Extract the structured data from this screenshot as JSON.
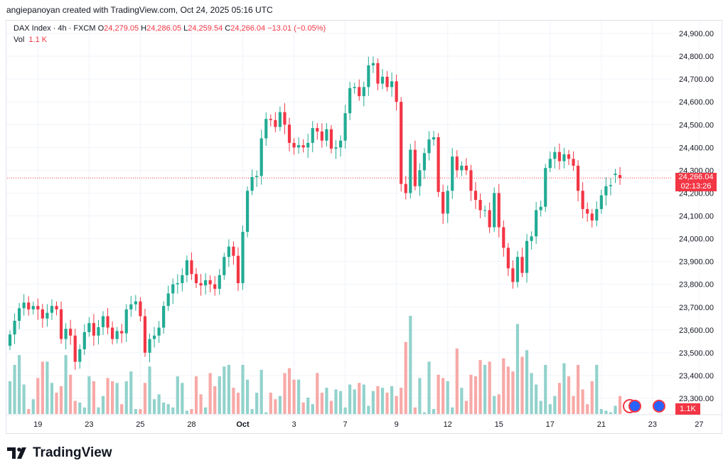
{
  "header": {
    "credit": "angiepanoyan created with TradingView.com, Oct 24, 2025 05:16 UTC"
  },
  "legend": {
    "symbol": "DAX Index · 4h · FXCM",
    "o_label": "O",
    "o_value": "24,279.05",
    "h_label": "H",
    "h_value": "24,286.05",
    "l_label": "L",
    "l_value": "24,259.54",
    "c_label": "C",
    "c_value": "24,266.04 −13.01 (−0.05%)",
    "vol_label": "Vol",
    "vol_value": "1.1 K"
  },
  "price_tag": {
    "price": "24,266.04",
    "countdown": "02:13:26"
  },
  "volume_tag": "1.1K",
  "logo": {
    "text": "TradingView"
  },
  "colors": {
    "up": "#22ab94",
    "down": "#f23645",
    "up_vol": "#92d2cc",
    "down_vol": "#f7a9a7",
    "grid": "#f0f3fa"
  },
  "chart_data": {
    "type": "candlestick",
    "title": "DAX Index · 4h · FXCM",
    "ylim": [
      23250,
      24980
    ],
    "y_ticks": [
      "24,900.00",
      "24,800.00",
      "24,700.00",
      "24,600.00",
      "24,500.00",
      "24,400.00",
      "24,300.00",
      "24,200.00",
      "24,100.00",
      "24,000.00",
      "23,900.00",
      "23,800.00",
      "23,700.00",
      "23,600.00",
      "23,500.00",
      "23,400.00",
      "23,300.00"
    ],
    "y_tick_values": [
      24900,
      24800,
      24700,
      24600,
      24500,
      24400,
      24300,
      24200,
      24100,
      24000,
      23900,
      23800,
      23700,
      23600,
      23500,
      23400,
      23300
    ],
    "x_ticks": [
      {
        "label": "19",
        "bar": 6
      },
      {
        "label": "23",
        "bar": 17
      },
      {
        "label": "25",
        "bar": 28
      },
      {
        "label": "28",
        "bar": 39
      },
      {
        "label": "Oct",
        "bar": 50
      },
      {
        "label": "3",
        "bar": 61
      },
      {
        "label": "7",
        "bar": 72
      },
      {
        "label": "9",
        "bar": 83
      },
      {
        "label": "12",
        "bar": 94
      },
      {
        "label": "15",
        "bar": 105
      },
      {
        "label": "17",
        "bar": 116
      },
      {
        "label": "21",
        "bar": 127
      },
      {
        "label": "23",
        "bar": 138
      },
      {
        "label": "27",
        "bar": 148
      }
    ],
    "last_price": 24266.04,
    "close": [
      23580,
      23640,
      23695,
      23720,
      23690,
      23705,
      23690,
      23650,
      23675,
      23705,
      23690,
      23560,
      23605,
      23575,
      23460,
      23515,
      23590,
      23630,
      23575,
      23612,
      23660,
      23610,
      23560,
      23595,
      23585,
      23690,
      23712,
      23725,
      23660,
      23500,
      23560,
      23575,
      23610,
      23705,
      23760,
      23800,
      23805,
      23840,
      23905,
      23845,
      23805,
      23795,
      23818,
      23800,
      23780,
      23840,
      23920,
      23965,
      23925,
      23805,
      24030,
      24210,
      24270,
      24275,
      24440,
      24525,
      24520,
      24490,
      24555,
      24500,
      24420,
      24400,
      24410,
      24400,
      24420,
      24485,
      24470,
      24430,
      24480,
      24395,
      24400,
      24430,
      24550,
      24660,
      24665,
      24625,
      24665,
      24760,
      24770,
      24680,
      24710,
      24665,
      24690,
      24600,
      24240,
      24200,
      24390,
      24230,
      24300,
      24375,
      24435,
      24445,
      24205,
      24110,
      24210,
      24360,
      24300,
      24320,
      24300,
      24210,
      24170,
      24125,
      24125,
      24050,
      24200,
      24050,
      23960,
      23870,
      23810,
      23920,
      23850,
      23990,
      24010,
      24125,
      24140,
      24310,
      24350,
      24380,
      24340,
      24370,
      24350,
      24320,
      24210,
      24130,
      24110,
      24080,
      24130,
      24190,
      24230,
      24235,
      24285,
      24266
    ],
    "open": [
      23530,
      23580,
      23640,
      23695,
      23720,
      23690,
      23705,
      23690,
      23650,
      23675,
      23705,
      23690,
      23560,
      23605,
      23575,
      23460,
      23515,
      23590,
      23630,
      23575,
      23612,
      23660,
      23610,
      23560,
      23595,
      23585,
      23690,
      23712,
      23725,
      23660,
      23500,
      23560,
      23575,
      23610,
      23705,
      23760,
      23800,
      23805,
      23840,
      23905,
      23845,
      23805,
      23795,
      23818,
      23800,
      23780,
      23840,
      23920,
      23965,
      23925,
      23805,
      24030,
      24210,
      24270,
      24275,
      24440,
      24525,
      24520,
      24490,
      24555,
      24500,
      24420,
      24400,
      24410,
      24400,
      24420,
      24485,
      24470,
      24430,
      24480,
      24395,
      24400,
      24430,
      24550,
      24660,
      24665,
      24625,
      24665,
      24760,
      24770,
      24680,
      24710,
      24665,
      24690,
      24600,
      24240,
      24200,
      24390,
      24230,
      24300,
      24375,
      24435,
      24445,
      24205,
      24110,
      24210,
      24360,
      24300,
      24320,
      24300,
      24210,
      24170,
      24125,
      24125,
      24050,
      24200,
      24050,
      23960,
      23870,
      23810,
      23920,
      23850,
      23990,
      24010,
      24125,
      24140,
      24310,
      24350,
      24380,
      24340,
      24370,
      24350,
      24320,
      24210,
      24130,
      24110,
      24080,
      24130,
      24190,
      24230,
      24279,
      24279
    ],
    "volume": [
      2.0,
      3.0,
      3.6,
      1.8,
      0.3,
      0.9,
      2.2,
      3.2,
      3.2,
      1.9,
      1.3,
      1.7,
      3.6,
      2.4,
      0.8,
      0.7,
      0.4,
      2.3,
      2.0,
      0.4,
      1.1,
      2.2,
      2.0,
      1.9,
      0.6,
      2.0,
      2.6,
      0.3,
      0.3,
      1.9,
      2.9,
      0.9,
      1.2,
      0.7,
      0.6,
      0.4,
      2.3,
      1.9,
      0.2,
      0.3,
      2.3,
      1.2,
      0.4,
      2.5,
      1.7,
      2.3,
      2.9,
      3.0,
      1.6,
      1.3,
      3.0,
      2.1,
      0.3,
      1.3,
      2.7,
      0.1,
      1.3,
      0.9,
      1.1,
      2.5,
      2.8,
      2.1,
      2.1,
      0.7,
      1.0,
      0.6,
      2.5,
      1.3,
      1.6,
      0.8,
      1.5,
      1.4,
      0.4,
      1.8,
      1.5,
      1.9,
      1.8,
      0.5,
      1.4,
      1.7,
      1.6,
      1.3,
      1.7,
      1.1,
      1.6,
      4.4,
      6.0,
      0.4,
      2.2,
      0.1,
      3.2,
      0.3,
      2.4,
      2.2,
      2.0,
      0.4,
      4.0,
      1.6,
      0.8,
      2.4,
      2.3,
      3.3,
      3.0,
      3.2,
      1.1,
      1.2,
      3.4,
      2.9,
      2.6,
      5.5,
      3.5,
      3.9,
      2.5,
      1.8,
      0.8,
      3.0,
      0.6,
      1.1,
      1.9,
      3.1,
      2.3,
      1.1,
      3.0,
      1.5,
      0.6,
      2.0,
      3.0,
      0.3,
      0.2,
      0.1,
      0.5,
      1.1
    ]
  }
}
